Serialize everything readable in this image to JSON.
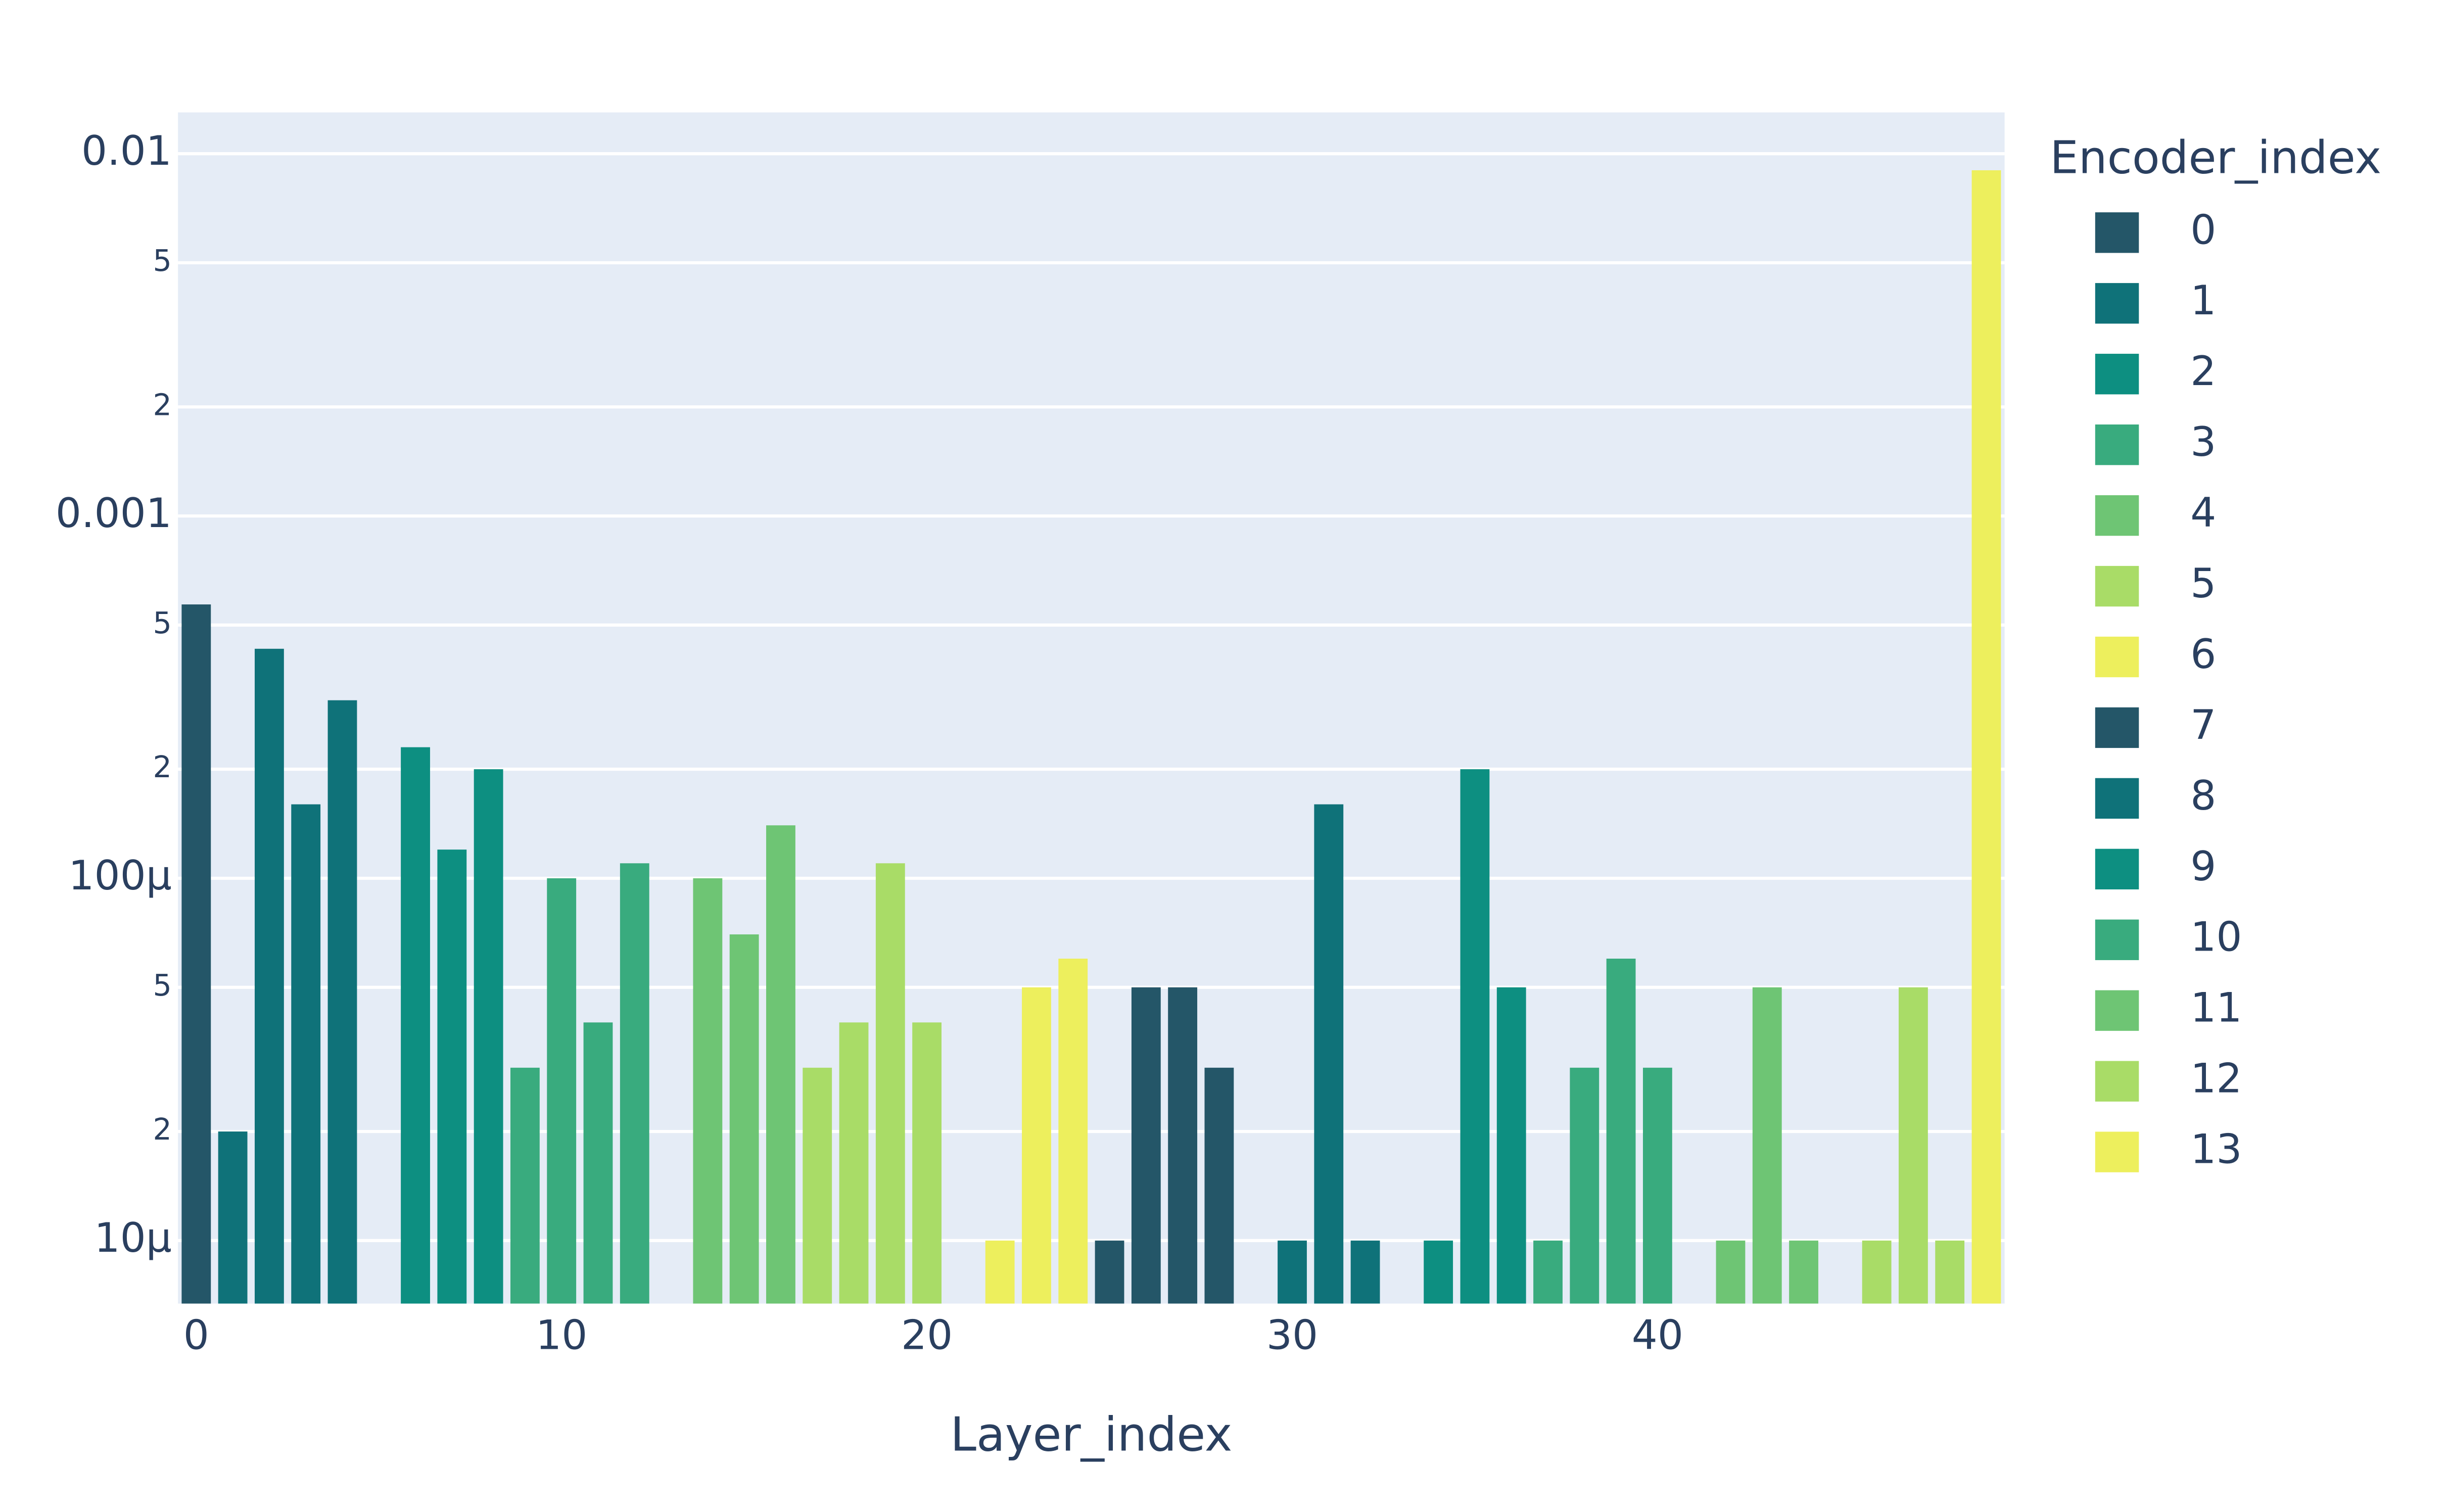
{
  "chart_data": {
    "type": "bar",
    "x_label": "Layer_index",
    "legend_title": "Encoder_index",
    "log_y": true,
    "grid": true,
    "xlim": [
      -0.5,
      49.5
    ],
    "xticks": [
      0,
      10,
      20,
      30,
      40
    ],
    "ylim": [
      6.7e-06,
      0.013
    ],
    "yticks": [
      {
        "value": 1e-05,
        "label": "10µ"
      },
      {
        "value": 2e-05,
        "label": "2"
      },
      {
        "value": 5e-05,
        "label": "5"
      },
      {
        "value": 0.0001,
        "label": "100µ"
      },
      {
        "value": 0.0002,
        "label": "2"
      },
      {
        "value": 0.0005,
        "label": "5"
      },
      0.001,
      {
        "value": 0.002,
        "label": "2"
      },
      {
        "value": 0.005,
        "label": "5"
      },
      0.01
    ],
    "series": [
      {
        "name": "0",
        "color": "#245668",
        "x": [
          0
        ],
        "values": [
          0.00057
        ]
      },
      {
        "name": "1",
        "color": "#0f7279",
        "x": [
          1,
          2,
          3,
          4
        ],
        "values": [
          2e-05,
          0.00043,
          0.00016,
          0.00031
        ]
      },
      {
        "name": "2",
        "color": "#0d8f81",
        "x": [
          6,
          7,
          8
        ],
        "values": [
          0.00023,
          0.00012,
          0.0002
        ]
      },
      {
        "name": "3",
        "color": "#39ab7e",
        "x": [
          9,
          10,
          11,
          12
        ],
        "values": [
          3e-05,
          0.0001,
          4e-05,
          0.00011
        ]
      },
      {
        "name": "4",
        "color": "#6ec574",
        "x": [
          14,
          15,
          16
        ],
        "values": [
          0.0001,
          7e-05,
          0.00014
        ]
      },
      {
        "name": "5",
        "color": "#a9dc67",
        "x": [
          17,
          18,
          19,
          20
        ],
        "values": [
          3e-05,
          4e-05,
          0.00011,
          4e-05
        ]
      },
      {
        "name": "6",
        "color": "#edef5d",
        "x": [
          22,
          23,
          24
        ],
        "values": [
          1e-05,
          5e-05,
          6e-05
        ]
      },
      {
        "name": "7",
        "color": "#245668",
        "x": [
          25,
          26,
          27,
          28
        ],
        "values": [
          1e-05,
          5e-05,
          5e-05,
          3e-05
        ]
      },
      {
        "name": "8",
        "color": "#0f7279",
        "x": [
          30,
          31,
          32
        ],
        "values": [
          1e-05,
          0.00016,
          1e-05
        ]
      },
      {
        "name": "9",
        "color": "#0d8f81",
        "x": [
          34,
          35,
          36
        ],
        "values": [
          1e-05,
          0.0002,
          5e-05
        ]
      },
      {
        "name": "10",
        "color": "#39ab7e",
        "x": [
          37,
          38,
          39,
          40
        ],
        "values": [
          1e-05,
          3e-05,
          6e-05,
          3e-05
        ]
      },
      {
        "name": "11",
        "color": "#6ec574",
        "x": [
          42,
          43,
          44
        ],
        "values": [
          1e-05,
          5e-05,
          1e-05
        ]
      },
      {
        "name": "12",
        "color": "#a9dc67",
        "x": [
          46,
          47,
          48
        ],
        "values": [
          1e-05,
          5e-05,
          1e-05
        ]
      },
      {
        "name": "13",
        "color": "#edef5d",
        "x": [
          49
        ],
        "values": [
          0.009
        ]
      }
    ]
  }
}
